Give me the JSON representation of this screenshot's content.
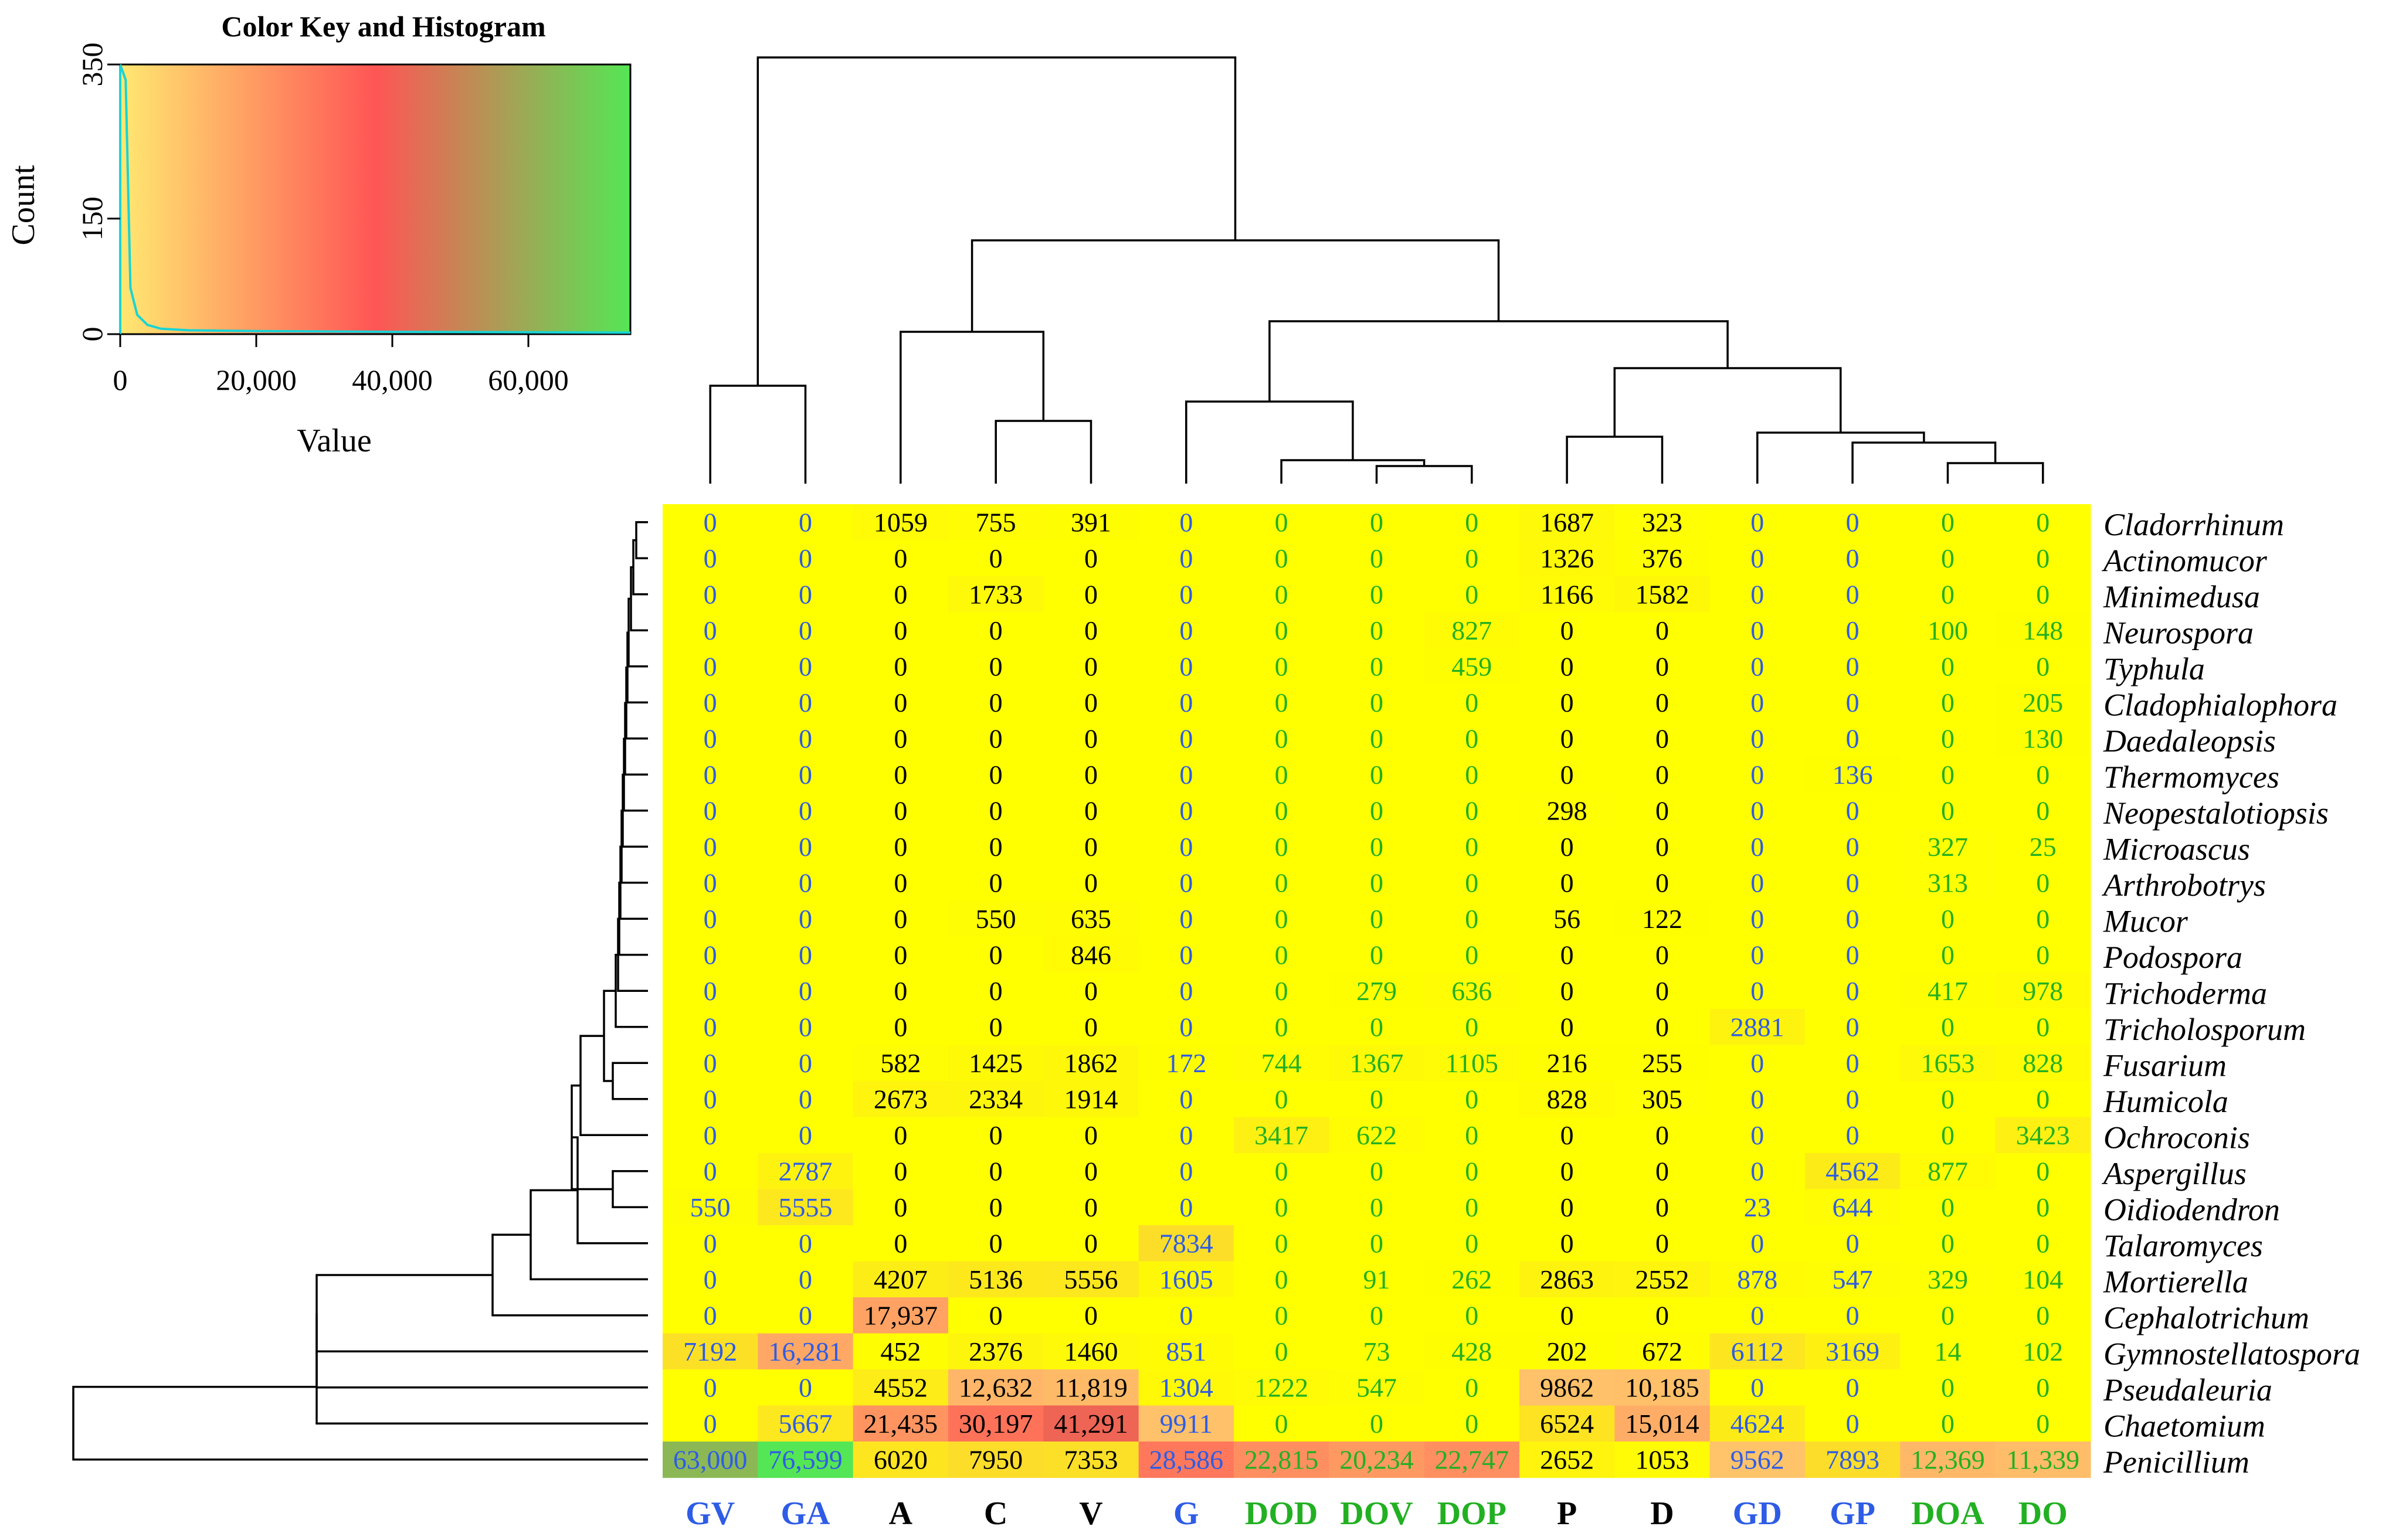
{
  "chart_data": {
    "type": "heatmap",
    "title": "",
    "key": {
      "title": "Color Key and Histogram",
      "xlabel": "Value",
      "ylabel": "Count",
      "xticks": [
        0,
        20000,
        40000,
        60000
      ],
      "xtick_labels": [
        "0",
        "20,000",
        "40,000",
        "60,000"
      ],
      "yticks": [
        0,
        150,
        350
      ],
      "ytick_labels": [
        "0",
        "150",
        "350"
      ],
      "xlim": [
        0,
        75000
      ],
      "ylim": [
        0,
        350
      ],
      "gradient": [
        "#ffe871",
        "#ff5555",
        "#55e655"
      ],
      "histogram": [
        [
          0,
          350
        ],
        [
          800,
          330
        ],
        [
          1500,
          60
        ],
        [
          2500,
          25
        ],
        [
          4000,
          12
        ],
        [
          6000,
          7
        ],
        [
          10000,
          5
        ],
        [
          20000,
          4
        ],
        [
          40000,
          3
        ],
        [
          75000,
          2
        ]
      ]
    },
    "columns": [
      {
        "label": "GV",
        "color": "#2e5ce6"
      },
      {
        "label": "GA",
        "color": "#2e5ce6"
      },
      {
        "label": "A",
        "color": "#000000"
      },
      {
        "label": "C",
        "color": "#000000"
      },
      {
        "label": "V",
        "color": "#000000"
      },
      {
        "label": "G",
        "color": "#2e5ce6"
      },
      {
        "label": "DOD",
        "color": "#22b022"
      },
      {
        "label": "DOV",
        "color": "#22b022"
      },
      {
        "label": "DOP",
        "color": "#22b022"
      },
      {
        "label": "P",
        "color": "#000000"
      },
      {
        "label": "D",
        "color": "#000000"
      },
      {
        "label": "GD",
        "color": "#2e5ce6"
      },
      {
        "label": "GP",
        "color": "#2e5ce6"
      },
      {
        "label": "DOA",
        "color": "#22b022"
      },
      {
        "label": "DO",
        "color": "#22b022"
      }
    ],
    "rows": [
      "Cladorrhinum",
      "Actinomucor",
      "Minimedusa",
      "Neurospora",
      "Typhula",
      "Cladophialophora",
      "Daedaleopsis",
      "Thermomyces",
      "Neopestalotiopsis",
      "Microascus",
      "Arthrobotrys",
      "Mucor",
      "Podospora",
      "Trichoderma",
      "Tricholosporum",
      "Fusarium",
      "Humicola",
      "Ochroconis",
      "Aspergillus",
      "Oidiodendron",
      "Talaromyces",
      "Mortierella",
      "Cephalotrichum",
      "Gymnostellatospora",
      "Pseudaleuria",
      "Chaetomium",
      "Penicillium"
    ],
    "values": [
      [
        0,
        0,
        1059,
        755,
        391,
        0,
        0,
        0,
        0,
        1687,
        323,
        0,
        0,
        0,
        0
      ],
      [
        0,
        0,
        0,
        0,
        0,
        0,
        0,
        0,
        0,
        1326,
        376,
        0,
        0,
        0,
        0
      ],
      [
        0,
        0,
        0,
        1733,
        0,
        0,
        0,
        0,
        0,
        1166,
        1582,
        0,
        0,
        0,
        0
      ],
      [
        0,
        0,
        0,
        0,
        0,
        0,
        0,
        0,
        827,
        0,
        0,
        0,
        0,
        100,
        148
      ],
      [
        0,
        0,
        0,
        0,
        0,
        0,
        0,
        0,
        459,
        0,
        0,
        0,
        0,
        0,
        0
      ],
      [
        0,
        0,
        0,
        0,
        0,
        0,
        0,
        0,
        0,
        0,
        0,
        0,
        0,
        0,
        205
      ],
      [
        0,
        0,
        0,
        0,
        0,
        0,
        0,
        0,
        0,
        0,
        0,
        0,
        0,
        0,
        130
      ],
      [
        0,
        0,
        0,
        0,
        0,
        0,
        0,
        0,
        0,
        0,
        0,
        0,
        136,
        0,
        0
      ],
      [
        0,
        0,
        0,
        0,
        0,
        0,
        0,
        0,
        0,
        298,
        0,
        0,
        0,
        0,
        0
      ],
      [
        0,
        0,
        0,
        0,
        0,
        0,
        0,
        0,
        0,
        0,
        0,
        0,
        0,
        327,
        25
      ],
      [
        0,
        0,
        0,
        0,
        0,
        0,
        0,
        0,
        0,
        0,
        0,
        0,
        0,
        313,
        0
      ],
      [
        0,
        0,
        0,
        550,
        635,
        0,
        0,
        0,
        0,
        56,
        122,
        0,
        0,
        0,
        0
      ],
      [
        0,
        0,
        0,
        0,
        846,
        0,
        0,
        0,
        0,
        0,
        0,
        0,
        0,
        0,
        0
      ],
      [
        0,
        0,
        0,
        0,
        0,
        0,
        0,
        279,
        636,
        0,
        0,
        0,
        0,
        417,
        978
      ],
      [
        0,
        0,
        0,
        0,
        0,
        0,
        0,
        0,
        0,
        0,
        0,
        2881,
        0,
        0,
        0
      ],
      [
        0,
        0,
        582,
        1425,
        1862,
        172,
        744,
        1367,
        1105,
        216,
        255,
        0,
        0,
        1653,
        828
      ],
      [
        0,
        0,
        2673,
        2334,
        1914,
        0,
        0,
        0,
        0,
        828,
        305,
        0,
        0,
        0,
        0
      ],
      [
        0,
        0,
        0,
        0,
        0,
        0,
        3417,
        622,
        0,
        0,
        0,
        0,
        0,
        0,
        3423
      ],
      [
        0,
        2787,
        0,
        0,
        0,
        0,
        0,
        0,
        0,
        0,
        0,
        0,
        4562,
        877,
        0
      ],
      [
        550,
        5555,
        0,
        0,
        0,
        0,
        0,
        0,
        0,
        0,
        0,
        23,
        644,
        0,
        0
      ],
      [
        0,
        0,
        0,
        0,
        0,
        7834,
        0,
        0,
        0,
        0,
        0,
        0,
        0,
        0,
        0
      ],
      [
        0,
        0,
        4207,
        5136,
        5556,
        1605,
        0,
        91,
        262,
        2863,
        2552,
        878,
        547,
        329,
        104
      ],
      [
        0,
        0,
        17937,
        0,
        0,
        0,
        0,
        0,
        0,
        0,
        0,
        0,
        0,
        0,
        0
      ],
      [
        7192,
        16281,
        452,
        2376,
        1460,
        851,
        0,
        73,
        428,
        202,
        672,
        6112,
        3169,
        14,
        102
      ],
      [
        0,
        0,
        4552,
        12632,
        11819,
        1304,
        1222,
        547,
        0,
        9862,
        10185,
        0,
        0,
        0,
        0
      ],
      [
        0,
        5667,
        21435,
        30197,
        41291,
        9911,
        0,
        0,
        0,
        6524,
        15014,
        4624,
        0,
        0,
        0
      ],
      [
        63000,
        76599,
        6020,
        7950,
        7353,
        28586,
        22815,
        20234,
        22747,
        2652,
        1053,
        9562,
        7893,
        12369,
        11339
      ]
    ]
  }
}
